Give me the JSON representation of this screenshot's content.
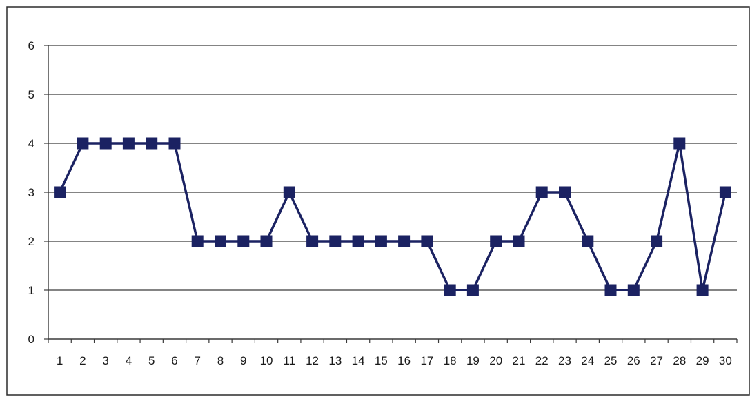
{
  "chart_data": {
    "type": "line",
    "title": "",
    "xlabel": "",
    "ylabel": "",
    "x": [
      1,
      2,
      3,
      4,
      5,
      6,
      7,
      8,
      9,
      10,
      11,
      12,
      13,
      14,
      15,
      16,
      17,
      18,
      19,
      20,
      21,
      22,
      23,
      24,
      25,
      26,
      27,
      28,
      29,
      30
    ],
    "series": [
      {
        "values": [
          3,
          4,
          4,
          4,
          4,
          4,
          2,
          2,
          2,
          2,
          3,
          2,
          2,
          2,
          2,
          2,
          2,
          1,
          1,
          2,
          2,
          3,
          3,
          2,
          1,
          1,
          2,
          4,
          1,
          3
        ],
        "color": "#1b2262",
        "marker": "square"
      }
    ],
    "xticks": [
      "1",
      "2",
      "3",
      "4",
      "5",
      "6",
      "7",
      "8",
      "9",
      "10",
      "11",
      "12",
      "13",
      "14",
      "15",
      "16",
      "17",
      "18",
      "19",
      "20",
      "21",
      "22",
      "23",
      "24",
      "25",
      "26",
      "27",
      "28",
      "29",
      "30"
    ],
    "yticks": [
      "0",
      "1",
      "2",
      "3",
      "4",
      "5",
      "6"
    ],
    "ylim": [
      0,
      6
    ],
    "grid": true,
    "legend": "none"
  }
}
